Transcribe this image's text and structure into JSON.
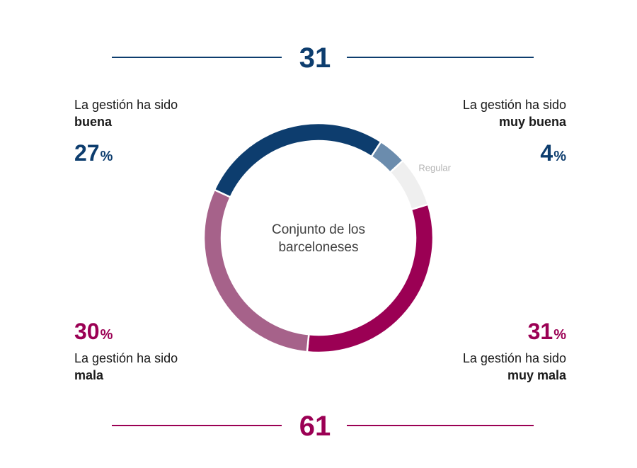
{
  "totals": {
    "positive": "31",
    "negative": "61"
  },
  "center_label": {
    "line1": "Conjunto de los",
    "line2": "barceloneses"
  },
  "labels": {
    "buena": {
      "prefix": "La gestión ha sido",
      "bold": "buena",
      "value": "27",
      "unit": "%"
    },
    "muy_buena": {
      "prefix": "La gestión ha sido",
      "bold": "muy buena",
      "value": "4",
      "unit": "%"
    },
    "mala": {
      "prefix": "La gestión ha sido",
      "bold": "mala",
      "value": "30",
      "unit": "%"
    },
    "muy_mala": {
      "prefix": "La gestión ha sido",
      "bold": "muy mala",
      "value": "31",
      "unit": "%"
    },
    "regular": "Regular"
  },
  "colors": {
    "navy": "#0d3d6e",
    "steel": "#6b8cad",
    "light_gray": "#efefef",
    "crimson": "#9b0054",
    "mauve": "#a6628a",
    "regular_text": "#b3b3b3"
  },
  "chart_data": {
    "type": "pie",
    "donut": true,
    "categories": [
      "muy buena",
      "Regular",
      "muy mala",
      "mala",
      "buena"
    ],
    "values": [
      4,
      7,
      31,
      30,
      27
    ],
    "colors": [
      "#6b8cad",
      "#efefef",
      "#9b0054",
      "#a6628a",
      "#0d3d6e"
    ]
  }
}
